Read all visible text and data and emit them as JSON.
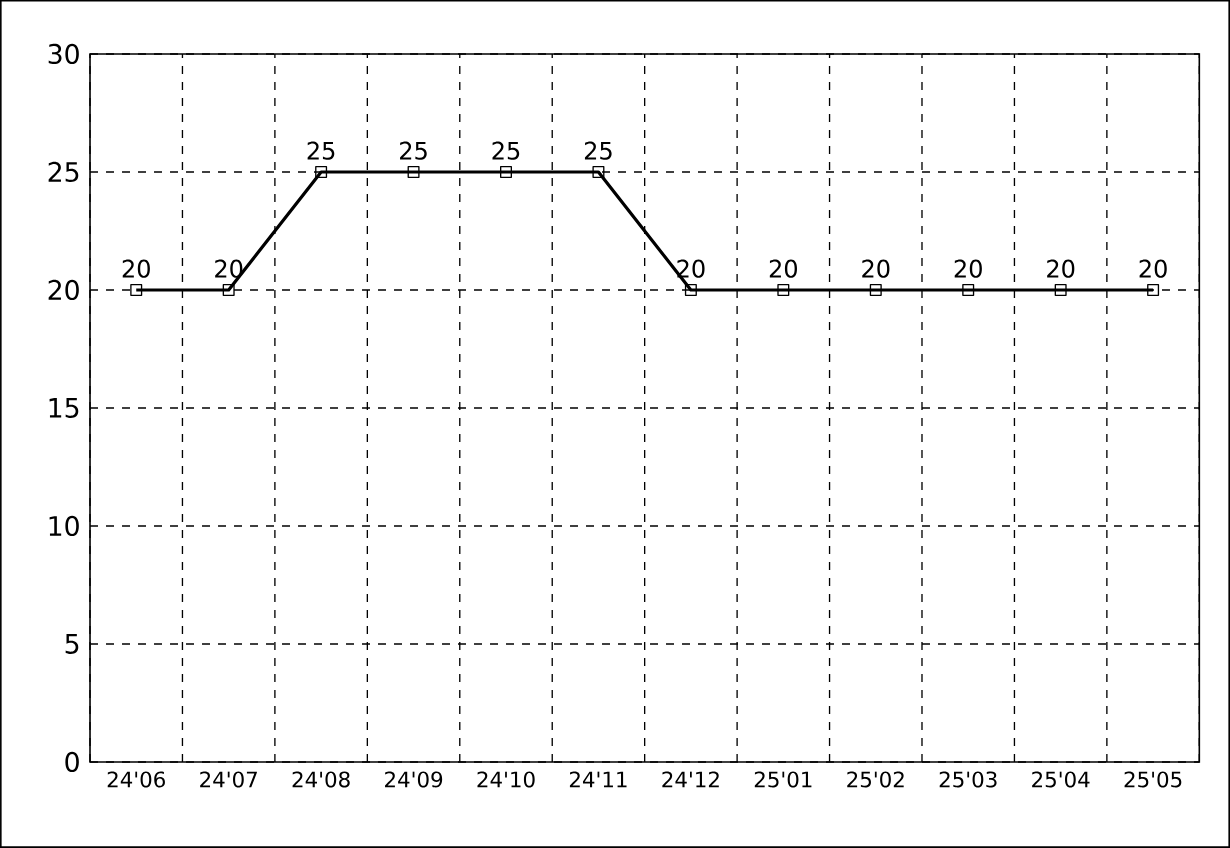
{
  "chart_data": {
    "type": "line",
    "categories": [
      "24'06",
      "24'07",
      "24'08",
      "24'09",
      "24'10",
      "24'11",
      "24'12",
      "25'01",
      "25'02",
      "25'03",
      "25'04",
      "25'05"
    ],
    "series": [
      {
        "color": "#000000",
        "values": [
          20,
          20,
          25,
          25,
          25,
          25,
          20,
          20,
          20,
          20,
          20,
          20
        ]
      }
    ],
    "ylim": [
      0,
      30
    ],
    "yticks": [
      0,
      5,
      10,
      15,
      20,
      25,
      30
    ],
    "grid": true,
    "marker": "square",
    "line_style": "solid",
    "data_labels": true
  }
}
